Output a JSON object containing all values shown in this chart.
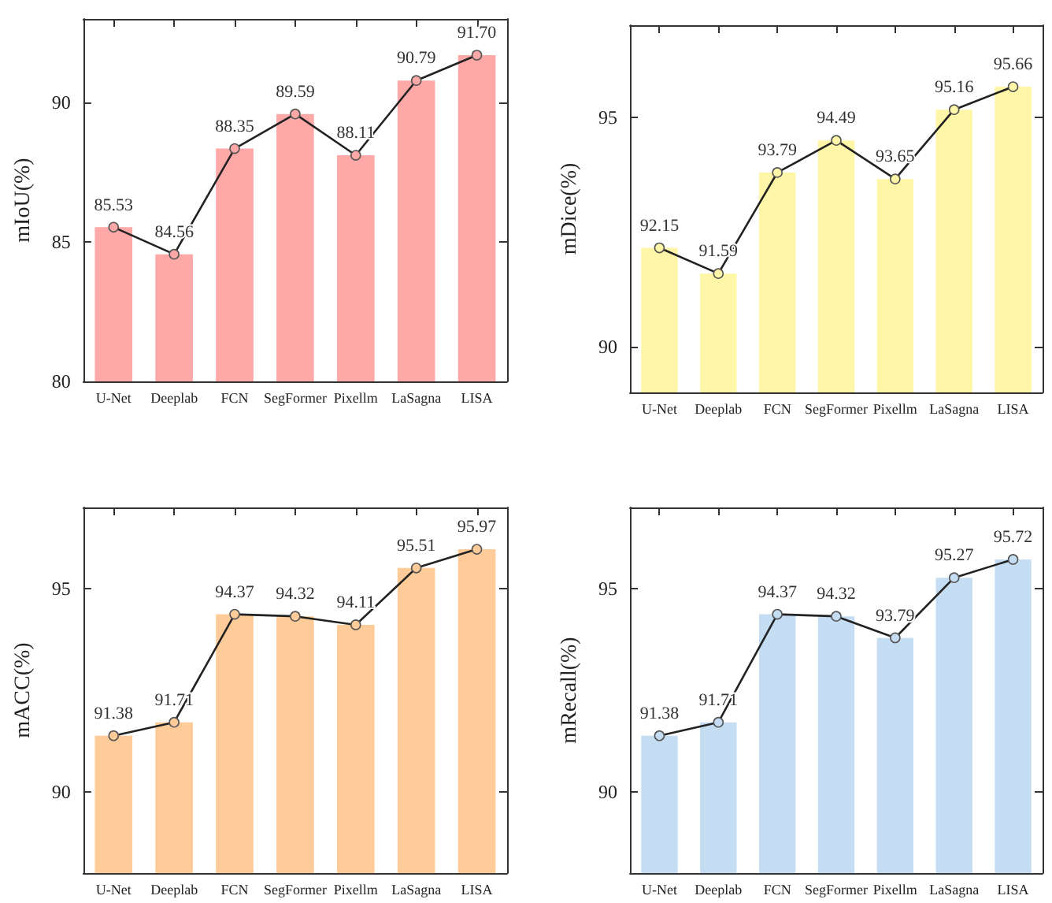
{
  "chart_data": [
    {
      "type": "bar",
      "ylabel": "mIoU(%)",
      "categories": [
        "U-Net",
        "Deeplab",
        "FCN",
        "SegFormer",
        "Pixellm",
        "LaSagna",
        "LISA"
      ],
      "ylim": [
        80,
        93
      ],
      "yticks": [
        80,
        85,
        90
      ],
      "grid": false,
      "marker": "circle",
      "series": [
        {
          "color": "#ffa8a8",
          "values": [
            85.53,
            84.56,
            88.35,
            89.59,
            88.11,
            90.79,
            91.7
          ]
        },
        {
          "type": "line",
          "color": "#222222",
          "values": [
            85.53,
            84.56,
            88.35,
            89.59,
            88.11,
            90.79,
            91.7
          ],
          "value_labels": [
            "85.53",
            "84.56",
            "88.35",
            "89.59",
            "88.11",
            "90.79",
            "91.70"
          ]
        }
      ]
    },
    {
      "type": "bar",
      "ylabel": "mDice(%)",
      "categories": [
        "U-Net",
        "Deeplab",
        "FCN",
        "SegFormer",
        "Pixellm",
        "LaSagna",
        "LISA"
      ],
      "ylim": [
        89,
        97
      ],
      "yticks": [
        90,
        95
      ],
      "grid": false,
      "marker": "circle",
      "series": [
        {
          "color": "#fff6a8",
          "values": [
            92.15,
            91.59,
            93.79,
            94.49,
            93.65,
            95.16,
            95.66
          ]
        },
        {
          "type": "line",
          "color": "#222222",
          "values": [
            92.15,
            91.59,
            93.79,
            94.49,
            93.65,
            95.16,
            95.66
          ],
          "value_labels": [
            "92.15",
            "91.59",
            "93.79",
            "94.49",
            "93.65",
            "95.16",
            "95.66"
          ]
        }
      ]
    },
    {
      "type": "bar",
      "ylabel": "mACC(%)",
      "categories": [
        "U-Net",
        "Deeplab",
        "FCN",
        "SegFormer",
        "Pixellm",
        "LaSagna",
        "LISA"
      ],
      "ylim": [
        88,
        97
      ],
      "yticks": [
        90,
        95
      ],
      "grid": false,
      "marker": "circle",
      "series": [
        {
          "color": "#ffcc99",
          "values": [
            91.38,
            91.71,
            94.37,
            94.32,
            94.11,
            95.51,
            95.97
          ]
        },
        {
          "type": "line",
          "color": "#222222",
          "values": [
            91.38,
            91.71,
            94.37,
            94.32,
            94.11,
            95.51,
            95.97
          ],
          "value_labels": [
            "91.38",
            "91.71",
            "94.37",
            "94.32",
            "94.11",
            "95.51",
            "95.97"
          ]
        }
      ]
    },
    {
      "type": "bar",
      "ylabel": "mRecall(%)",
      "categories": [
        "U-Net",
        "Deeplab",
        "FCN",
        "SegFormer",
        "Pixellm",
        "LaSagna",
        "LISA"
      ],
      "ylim": [
        88,
        97
      ],
      "yticks": [
        90,
        95
      ],
      "grid": false,
      "marker": "circle",
      "series": [
        {
          "color": "#c5ddf2",
          "values": [
            91.38,
            91.71,
            94.37,
            94.32,
            93.79,
            95.27,
            95.72
          ]
        },
        {
          "type": "line",
          "color": "#222222",
          "values": [
            91.38,
            91.71,
            94.37,
            94.32,
            93.79,
            95.27,
            95.72
          ],
          "value_labels": [
            "91.38",
            "91.71",
            "94.37",
            "94.32",
            "93.79",
            "95.27",
            "95.72"
          ]
        }
      ]
    }
  ]
}
